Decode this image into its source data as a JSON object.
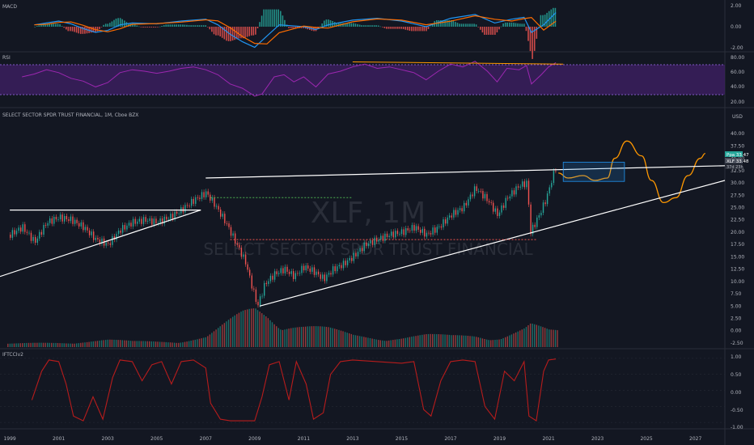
{
  "panes": {
    "macd": {
      "label": "MACD",
      "ticks": [
        "2.00",
        "0.00",
        "-2.00"
      ]
    },
    "rsi": {
      "label": "RSI",
      "ticks": [
        "80.00",
        "60.00",
        "40.00",
        "20.00"
      ]
    },
    "main": {
      "label": "SELECT SECTOR SPDR TRUST FINANCIAL, 1M, Cboe BZX",
      "currency": "USD",
      "watermark_symbol": "XLF, 1M",
      "watermark_name": "SELECT SECTOR SPDR TRUST FINANCIAL",
      "ticks": [
        "40.00",
        "37.50",
        "35.00",
        "32.50",
        "30.00",
        "27.50",
        "25.00",
        "22.50",
        "20.00",
        "17.50",
        "15.00",
        "12.50",
        "10.00",
        "7.50",
        "5.00",
        "2.50",
        "0.00",
        "-2.50"
      ]
    },
    "iftcc": {
      "label": "IFTCCIv2",
      "ticks": [
        "1.00",
        "0.50",
        "0.00",
        "-0.50",
        "-1.00"
      ]
    }
  },
  "price_tags": [
    {
      "text": "Ppa  33.47",
      "color": "#26a69a"
    },
    {
      "text": "XLF  33.48",
      "color": "#b2b5be"
    },
    {
      "text": "37d 23h",
      "color": "#787b86"
    }
  ],
  "x_axis": {
    "labels": [
      "1999",
      "2001",
      "2003",
      "2005",
      "2007",
      "2009",
      "2011",
      "2013",
      "2015",
      "2017",
      "2019",
      "2021",
      "2023",
      "2025",
      "2027"
    ]
  },
  "colors": {
    "up": "#26a69a",
    "down": "#ef5350",
    "rsi": "#9c27b0",
    "macd": "#2196f3",
    "signal": "#ff6d00",
    "trend": "#ffffff",
    "projection": "#ff9800",
    "iftcc": "#b71c1c"
  },
  "chart_data": {
    "type": "line",
    "x_range": [
      1998.6,
      2028.2
    ],
    "main": {
      "series": [
        {
          "name": "XLF",
          "points": [
            [
              1999.0,
              19.5
            ],
            [
              1999.5,
              21.0
            ],
            [
              2000.0,
              18.0
            ],
            [
              2000.5,
              22.0
            ],
            [
              2001.0,
              23.0
            ],
            [
              2001.5,
              22.5
            ],
            [
              2002.0,
              21.0
            ],
            [
              2002.5,
              18.5
            ],
            [
              2003.0,
              17.5
            ],
            [
              2003.5,
              20.5
            ],
            [
              2004.0,
              22.0
            ],
            [
              2004.5,
              22.5
            ],
            [
              2005.0,
              22.0
            ],
            [
              2005.5,
              23.0
            ],
            [
              2006.0,
              24.5
            ],
            [
              2006.5,
              26.5
            ],
            [
              2007.0,
              28.0
            ],
            [
              2007.3,
              26.0
            ],
            [
              2007.8,
              22.0
            ],
            [
              2008.2,
              18.0
            ],
            [
              2008.6,
              14.0
            ],
            [
              2008.9,
              8.5
            ],
            [
              2009.1,
              5.0
            ],
            [
              2009.4,
              9.5
            ],
            [
              2009.8,
              11.5
            ],
            [
              2010.2,
              12.5
            ],
            [
              2010.6,
              11.0
            ],
            [
              2011.0,
              13.0
            ],
            [
              2011.4,
              12.0
            ],
            [
              2011.8,
              10.5
            ],
            [
              2012.2,
              12.5
            ],
            [
              2012.6,
              13.5
            ],
            [
              2013.0,
              15.0
            ],
            [
              2013.5,
              17.5
            ],
            [
              2014.0,
              18.5
            ],
            [
              2014.5,
              19.5
            ],
            [
              2015.0,
              20.0
            ],
            [
              2015.5,
              21.0
            ],
            [
              2016.0,
              19.5
            ],
            [
              2016.5,
              21.0
            ],
            [
              2017.0,
              23.5
            ],
            [
              2017.5,
              25.0
            ],
            [
              2018.0,
              29.0
            ],
            [
              2018.5,
              26.5
            ],
            [
              2018.9,
              23.5
            ],
            [
              2019.3,
              27.0
            ],
            [
              2019.8,
              29.5
            ],
            [
              2020.1,
              30.0
            ],
            [
              2020.25,
              20.0
            ],
            [
              2020.6,
              23.5
            ],
            [
              2020.9,
              27.0
            ],
            [
              2021.1,
              30.5
            ],
            [
              2021.3,
              33.5
            ]
          ]
        },
        {
          "name": "",
          "points": [
            [
              2021.4,
              32.0
            ],
            [
              2021.8,
              31.0
            ],
            [
              2022.4,
              31.5
            ],
            [
              2022.9,
              30.5
            ],
            [
              2023.4,
              31.0
            ],
            [
              2023.7,
              35.0
            ],
            [
              2024.2,
              38.5
            ],
            [
              2024.8,
              35.5
            ],
            [
              2025.2,
              30.5
            ],
            [
              2025.7,
              26.0
            ],
            [
              2026.2,
              27.0
            ],
            [
              2026.7,
              31.5
            ],
            [
              2027.2,
              35.0
            ],
            [
              2027.4,
              36.0
            ]
          ]
        }
      ],
      "y_range": [
        -3.5,
        42.5
      ]
    },
    "volume": {
      "note_units": "relative",
      "points": [
        [
          1999.0,
          0.08
        ],
        [
          2000.0,
          0.1
        ],
        [
          2001.0,
          0.12
        ],
        [
          2002.0,
          0.15
        ],
        [
          2003.0,
          0.18
        ],
        [
          2004.0,
          0.14
        ],
        [
          2005.0,
          0.15
        ],
        [
          2006.0,
          0.17
        ],
        [
          2007.0,
          0.25
        ],
        [
          2007.5,
          0.45
        ],
        [
          2008.0,
          0.65
        ],
        [
          2008.5,
          0.85
        ],
        [
          2009.0,
          1.0
        ],
        [
          2009.5,
          0.9
        ],
        [
          2010.0,
          0.7
        ],
        [
          2011.0,
          0.55
        ],
        [
          2012.0,
          0.45
        ],
        [
          2013.0,
          0.3
        ],
        [
          2014.0,
          0.25
        ],
        [
          2015.0,
          0.25
        ],
        [
          2016.0,
          0.3
        ],
        [
          2017.0,
          0.28
        ],
        [
          2018.0,
          0.32
        ],
        [
          2019.0,
          0.25
        ],
        [
          2020.0,
          0.45
        ],
        [
          2020.25,
          0.55
        ],
        [
          2021.0,
          0.4
        ]
      ]
    },
    "rsi": {
      "y_range": [
        10,
        85
      ],
      "points": [
        [
          1999.5,
          52
        ],
        [
          2000.0,
          56
        ],
        [
          2000.5,
          62
        ],
        [
          2001.0,
          58
        ],
        [
          2001.5,
          50
        ],
        [
          2002.0,
          46
        ],
        [
          2002.5,
          38
        ],
        [
          2003.0,
          44
        ],
        [
          2003.5,
          58
        ],
        [
          2004.0,
          62
        ],
        [
          2004.5,
          60
        ],
        [
          2005.0,
          57
        ],
        [
          2005.5,
          60
        ],
        [
          2006.0,
          64
        ],
        [
          2006.5,
          66
        ],
        [
          2007.0,
          62
        ],
        [
          2007.5,
          55
        ],
        [
          2008.0,
          42
        ],
        [
          2008.5,
          36
        ],
        [
          2009.0,
          25
        ],
        [
          2009.3,
          28
        ],
        [
          2009.8,
          52
        ],
        [
          2010.2,
          55
        ],
        [
          2010.6,
          45
        ],
        [
          2011.0,
          52
        ],
        [
          2011.5,
          38
        ],
        [
          2012.0,
          56
        ],
        [
          2012.5,
          60
        ],
        [
          2013.0,
          66
        ],
        [
          2013.5,
          70
        ],
        [
          2014.0,
          64
        ],
        [
          2014.5,
          66
        ],
        [
          2015.0,
          62
        ],
        [
          2015.5,
          58
        ],
        [
          2016.0,
          48
        ],
        [
          2016.5,
          60
        ],
        [
          2017.0,
          70
        ],
        [
          2017.5,
          66
        ],
        [
          2018.0,
          74
        ],
        [
          2018.5,
          60
        ],
        [
          2018.9,
          45
        ],
        [
          2019.3,
          64
        ],
        [
          2019.8,
          62
        ],
        [
          2020.1,
          68
        ],
        [
          2020.3,
          42
        ],
        [
          2020.7,
          55
        ],
        [
          2021.0,
          66
        ],
        [
          2021.3,
          72
        ]
      ]
    },
    "macd": {
      "y_range": [
        -2.5,
        2.5
      ],
      "points": [
        [
          2000.0,
          0.2
        ],
        [
          2000.5,
          0.4
        ],
        [
          2001.0,
          0.6
        ],
        [
          2001.5,
          0.3
        ],
        [
          2002.0,
          -0.2
        ],
        [
          2002.5,
          -0.6
        ],
        [
          2003.0,
          -0.4
        ],
        [
          2003.5,
          0.2
        ],
        [
          2004.0,
          0.4
        ],
        [
          2005.0,
          0.3
        ],
        [
          2006.0,
          0.6
        ],
        [
          2007.0,
          0.8
        ],
        [
          2007.5,
          0.2
        ],
        [
          2008.0,
          -0.8
        ],
        [
          2008.5,
          -1.6
        ],
        [
          2009.0,
          -2.2
        ],
        [
          2009.5,
          -1.0
        ],
        [
          2010.0,
          0.2
        ],
        [
          2011.0,
          0.0
        ],
        [
          2011.5,
          -0.3
        ],
        [
          2012.0,
          0.2
        ],
        [
          2013.0,
          0.7
        ],
        [
          2014.0,
          0.9
        ],
        [
          2015.0,
          0.6
        ],
        [
          2016.0,
          0.0
        ],
        [
          2017.0,
          0.9
        ],
        [
          2018.0,
          1.3
        ],
        [
          2018.8,
          0.4
        ],
        [
          2019.5,
          0.8
        ],
        [
          2020.0,
          1.0
        ],
        [
          2020.3,
          -0.6
        ],
        [
          2020.8,
          0.2
        ],
        [
          2021.3,
          1.5
        ]
      ]
    },
    "iftcc": {
      "y_range": [
        -1.15,
        1.15
      ],
      "points": [
        [
          1999.9,
          -0.3
        ],
        [
          2000.3,
          0.6
        ],
        [
          2000.6,
          0.95
        ],
        [
          2001.0,
          0.9
        ],
        [
          2001.3,
          0.2
        ],
        [
          2001.6,
          -0.8
        ],
        [
          2002.0,
          -0.95
        ],
        [
          2002.4,
          -0.2
        ],
        [
          2002.8,
          -0.9
        ],
        [
          2003.2,
          0.4
        ],
        [
          2003.5,
          0.95
        ],
        [
          2004.0,
          0.9
        ],
        [
          2004.4,
          0.3
        ],
        [
          2004.8,
          0.8
        ],
        [
          2005.2,
          0.9
        ],
        [
          2005.6,
          0.2
        ],
        [
          2006.0,
          0.9
        ],
        [
          2006.5,
          0.95
        ],
        [
          2007.0,
          0.7
        ],
        [
          2007.2,
          -0.4
        ],
        [
          2007.6,
          -0.9
        ],
        [
          2008.0,
          -0.95
        ],
        [
          2009.0,
          -0.95
        ],
        [
          2009.3,
          -0.2
        ],
        [
          2009.6,
          0.8
        ],
        [
          2010.0,
          0.9
        ],
        [
          2010.4,
          -0.3
        ],
        [
          2010.7,
          0.9
        ],
        [
          2011.1,
          0.2
        ],
        [
          2011.4,
          -0.9
        ],
        [
          2011.8,
          -0.7
        ],
        [
          2012.1,
          0.5
        ],
        [
          2012.5,
          0.9
        ],
        [
          2013.0,
          0.95
        ],
        [
          2014.0,
          0.9
        ],
        [
          2015.0,
          0.85
        ],
        [
          2015.5,
          0.9
        ],
        [
          2015.9,
          -0.6
        ],
        [
          2016.2,
          -0.8
        ],
        [
          2016.6,
          0.3
        ],
        [
          2017.0,
          0.9
        ],
        [
          2017.5,
          0.95
        ],
        [
          2018.0,
          0.9
        ],
        [
          2018.4,
          -0.5
        ],
        [
          2018.8,
          -0.9
        ],
        [
          2019.2,
          0.6
        ],
        [
          2019.6,
          0.3
        ],
        [
          2020.0,
          0.9
        ],
        [
          2020.2,
          -0.8
        ],
        [
          2020.5,
          -0.95
        ],
        [
          2020.8,
          0.6
        ],
        [
          2021.0,
          0.95
        ],
        [
          2021.3,
          0.98
        ]
      ]
    },
    "annotations": {
      "resistance": [
        [
          2007.0,
          31.0
        ],
        [
          2028.2,
          33.5
        ]
      ],
      "support_early": [
        [
          1998.6,
          11.0
        ],
        [
          2006.8,
          24.5
        ]
      ],
      "support_late": [
        [
          2009.2,
          5.0
        ],
        [
          2028.2,
          30.5
        ]
      ],
      "flat_2000s": [
        [
          1999.0,
          24.5
        ],
        [
          2006.8,
          24.5
        ]
      ],
      "green_dotted": [
        [
          2007.2,
          27.0
        ],
        [
          2013.0,
          27.0
        ]
      ],
      "red_dotted": [
        [
          2008.0,
          18.5
        ],
        [
          2020.5,
          18.5
        ]
      ]
    }
  }
}
